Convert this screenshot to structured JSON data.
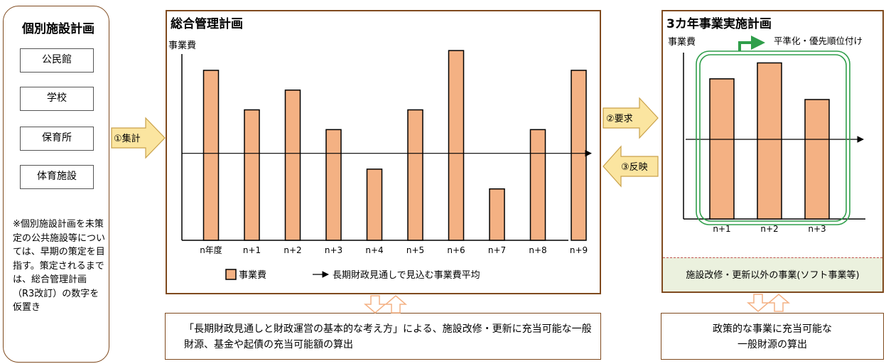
{
  "facility_panel": {
    "title": "個別施設計画",
    "items": [
      "公民館",
      "学校",
      "保育所",
      "体育施設"
    ],
    "note": "※個別施設計画を未策定の公共施設等については、早期の策定を目指す。策定されるまでは、総合管理計画（R3改訂）の数字を仮置き"
  },
  "arrows": {
    "aggregate": "①集計",
    "request": "②要求",
    "reflect": "③反映"
  },
  "main_chart_panel": {
    "title": "総合管理計画",
    "legend": {
      "bar_label": "事業費",
      "avg_label": "長期財政見通しで見込む事業費平均"
    }
  },
  "three_year_panel": {
    "title": "3カ年事業実施計画",
    "annotation": "平準化・優先順位付け",
    "footer": "施設改修・更新以外の事業(ソフト事業等)"
  },
  "bottom_boxes": {
    "left": "「長期財政見通しと財政運営の基本的な考え方」による、施設改修・更新に充当可能な一般財源、基金や起債の充当可能額の算出",
    "right_line1": "政策的な事業に充当可能な",
    "right_line2": "一般財源の算出"
  },
  "colors": {
    "bar_fill": "#f4b183",
    "border": "#7f4a1e",
    "arrow_fill": "#fbe5a0",
    "green": "#2f9e4a",
    "footer_fill": "#ebf1de"
  },
  "chart_data": [
    {
      "type": "bar",
      "ylabel": "事業費",
      "categories": [
        "n年度",
        "n+1",
        "n+2",
        "n+3",
        "n+4",
        "n+5",
        "n+6",
        "n+7",
        "n+8",
        "n+9"
      ],
      "values": [
        86,
        66,
        76,
        56,
        36,
        66,
        96,
        26,
        56,
        86
      ],
      "average_line": 44,
      "ylim": [
        0,
        100
      ]
    },
    {
      "type": "bar",
      "ylabel": "事業費",
      "categories": [
        "n+1",
        "n+2",
        "n+3"
      ],
      "values": [
        88,
        98,
        75
      ],
      "average_line": 50,
      "ylim": [
        0,
        100
      ]
    }
  ]
}
